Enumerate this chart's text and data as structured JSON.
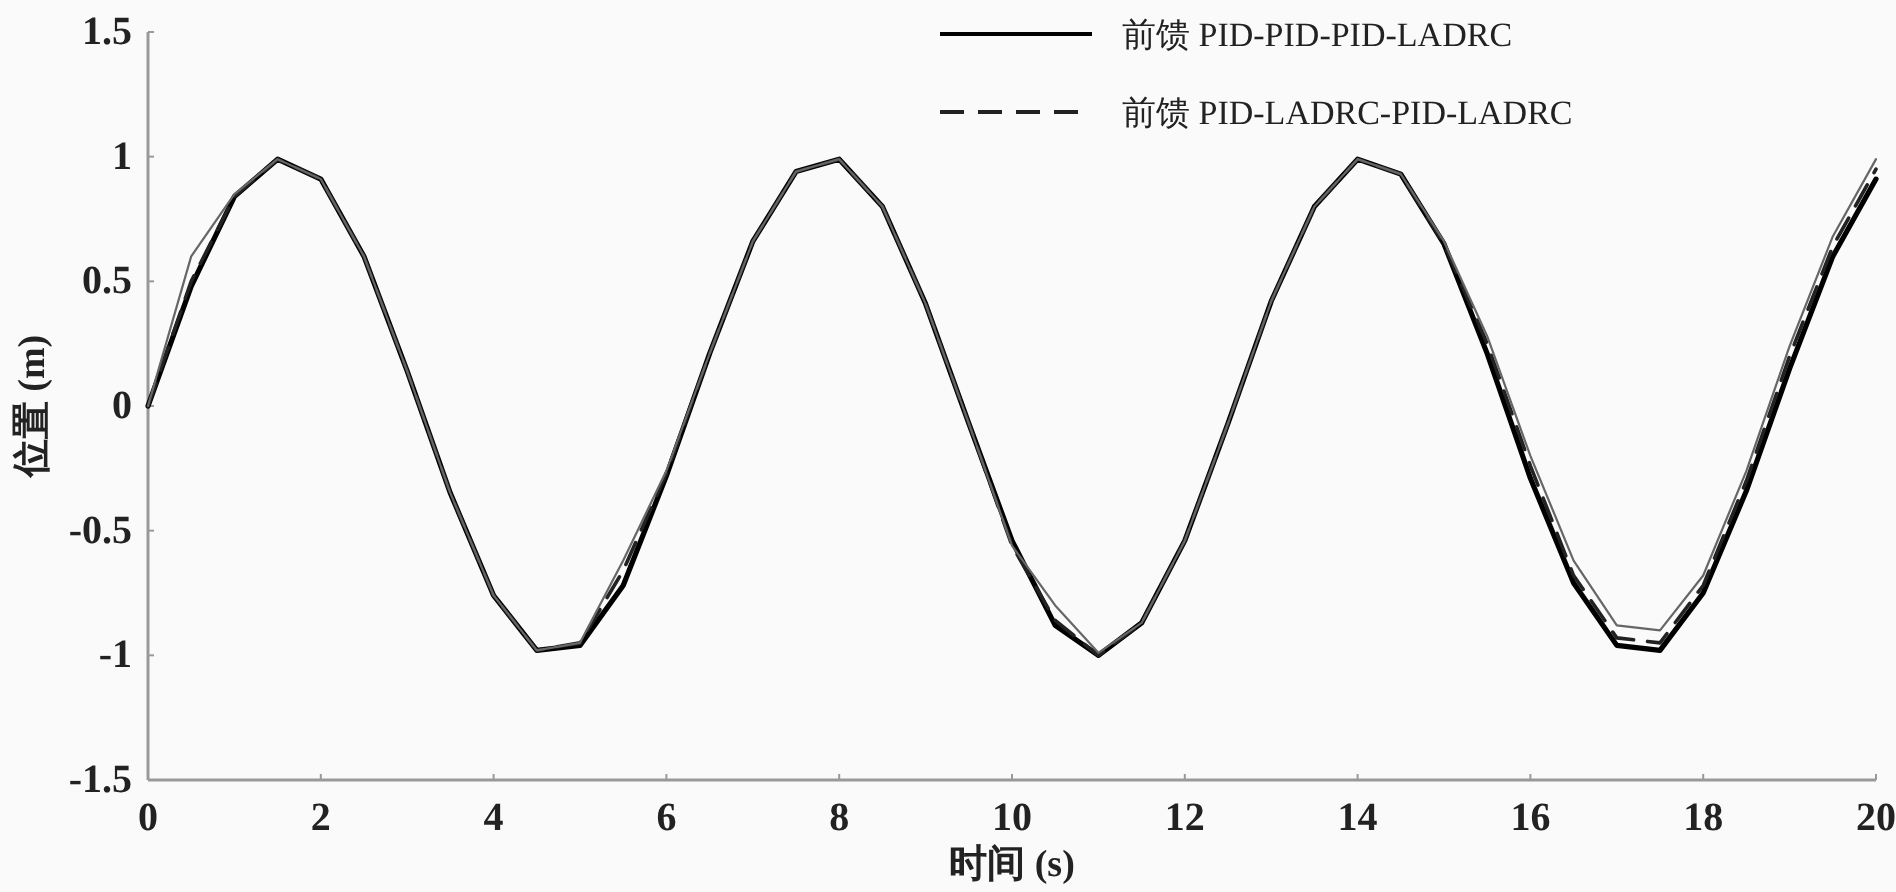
{
  "chart_data": {
    "type": "line",
    "xlabel": "时间 (s)",
    "ylabel": "位置 (m)",
    "x": [
      0,
      0.5,
      1,
      1.5,
      2,
      2.5,
      3,
      3.5,
      4,
      4.5,
      5,
      5.5,
      6,
      6.5,
      7,
      7.5,
      8,
      8.5,
      9,
      9.5,
      10,
      10.5,
      11,
      11.5,
      12,
      12.5,
      13,
      13.5,
      14,
      14.5,
      15,
      15.5,
      16,
      16.5,
      17,
      17.5,
      18,
      18.5,
      19,
      19.5,
      20
    ],
    "series": [
      {
        "name": "前馈 PID-PID-PID-LADRC",
        "color": "#000000",
        "line_style": "solid",
        "values": [
          0,
          0.48,
          0.84,
          0.99,
          0.91,
          0.6,
          0.14,
          -0.35,
          -0.76,
          -0.98,
          -0.96,
          -0.72,
          -0.28,
          0.21,
          0.66,
          0.94,
          0.99,
          0.8,
          0.41,
          -0.07,
          -0.54,
          -0.88,
          -1.0,
          -0.87,
          -0.54,
          -0.07,
          0.42,
          0.8,
          0.99,
          0.93,
          0.65,
          0.21,
          -0.29,
          -0.71,
          -0.96,
          -0.98,
          -0.75,
          -0.34,
          0.15,
          0.6,
          0.91
        ]
      },
      {
        "name": "前馈 PID-LADRC-PID-LADRC",
        "color": "#222222",
        "line_style": "dashed",
        "values": [
          0,
          0.5,
          0.84,
          0.99,
          0.91,
          0.6,
          0.14,
          -0.35,
          -0.76,
          -0.98,
          -0.95,
          -0.66,
          -0.27,
          0.21,
          0.66,
          0.94,
          0.99,
          0.8,
          0.41,
          -0.07,
          -0.56,
          -0.86,
          -1.0,
          -0.87,
          -0.54,
          -0.07,
          0.42,
          0.8,
          0.99,
          0.93,
          0.65,
          0.25,
          -0.24,
          -0.68,
          -0.93,
          -0.95,
          -0.72,
          -0.3,
          0.2,
          0.64,
          0.95
        ]
      },
      {
        "color": "#666666",
        "line_style": "solid",
        "values": [
          0,
          0.6,
          0.85,
          0.99,
          0.91,
          0.6,
          0.14,
          -0.35,
          -0.76,
          -0.98,
          -0.95,
          -0.62,
          -0.26,
          0.21,
          0.66,
          0.94,
          0.99,
          0.8,
          0.41,
          -0.07,
          -0.56,
          -0.8,
          -0.99,
          -0.87,
          -0.54,
          -0.07,
          0.42,
          0.8,
          0.99,
          0.93,
          0.66,
          0.28,
          -0.2,
          -0.62,
          -0.88,
          -0.9,
          -0.68,
          -0.26,
          0.24,
          0.68,
          0.99
        ]
      }
    ],
    "xlim": [
      0,
      20
    ],
    "xticks": [
      0,
      2,
      4,
      6,
      8,
      10,
      12,
      14,
      16,
      18,
      20
    ],
    "ylim": [
      -1.5,
      1.5
    ],
    "yticks": [
      -1.5,
      -1,
      -0.5,
      0,
      0.5,
      1,
      1.5
    ],
    "grid": false,
    "legend": "top right",
    "marker": "none"
  }
}
